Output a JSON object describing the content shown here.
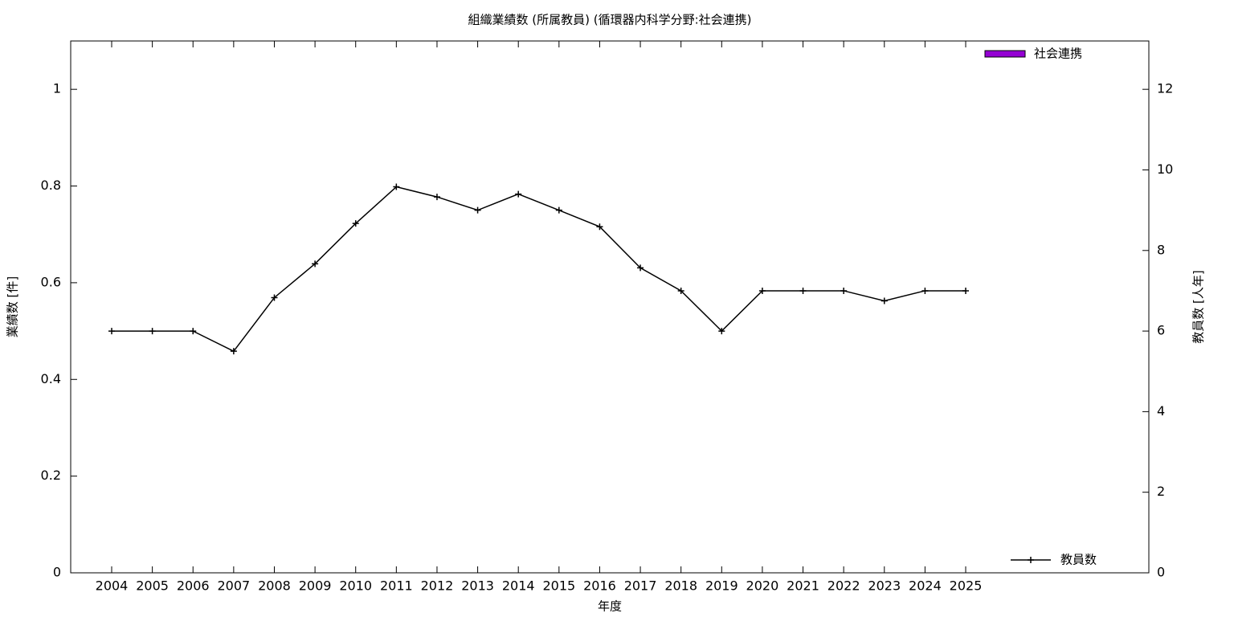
{
  "chart_data": {
    "type": "bar-line",
    "title": "組織業績数 (所属教員) (循環器内科学分野:社会連携)",
    "x_label": "年度",
    "y_label": "業績数 [件]",
    "y2_label": "教員数 [人年]",
    "categories": [
      "2004",
      "2005",
      "2006",
      "2007",
      "2008",
      "2009",
      "2010",
      "2011",
      "2012",
      "2013",
      "2014",
      "2015",
      "2016",
      "2017",
      "2018",
      "2019",
      "2020",
      "2021",
      "2022",
      "2023",
      "2024",
      "2025"
    ],
    "series": [
      {
        "name": "社会連携",
        "type": "bar",
        "color": "#9400d3",
        "values": [
          0,
          0,
          0,
          0,
          0,
          0,
          0,
          0,
          0,
          0,
          0,
          0,
          0,
          0,
          0,
          0,
          0,
          0,
          0,
          0,
          0,
          0
        ],
        "legend": "top-right"
      },
      {
        "name": "教員数",
        "type": "line",
        "axis": "y2",
        "color": "#000000",
        "values": [
          6,
          6,
          6,
          5.5,
          6.83,
          7.67,
          8.67,
          9.58,
          9.33,
          9,
          9.4,
          9,
          8.59,
          7.57,
          7,
          6,
          7,
          7,
          7,
          6.75,
          7,
          7
        ],
        "legend": "bottom-right"
      }
    ],
    "ylim": [
      0,
      1.1
    ],
    "yticks": [
      0,
      0.2,
      0.4,
      0.6,
      0.8,
      1
    ],
    "y2lim": [
      0,
      13.2
    ],
    "y2ticks": [
      0,
      2,
      4,
      6,
      8,
      10,
      12
    ],
    "grid": false
  }
}
